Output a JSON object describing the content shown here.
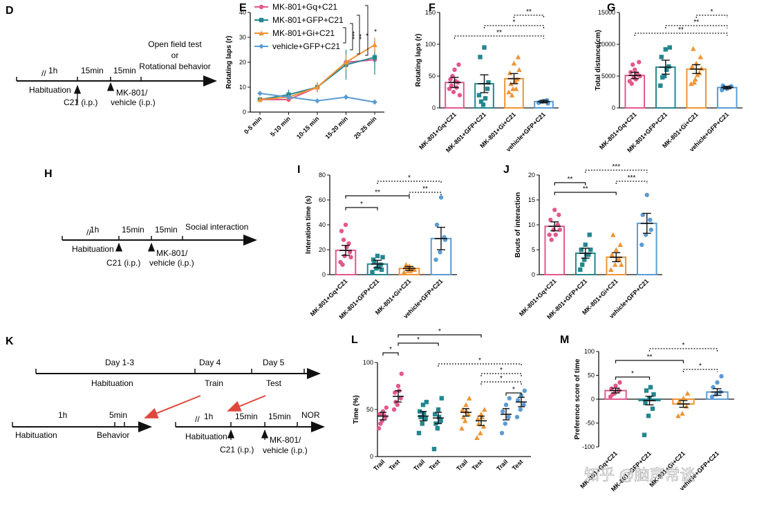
{
  "watermark": "知乎 @脑声常谈",
  "colors": {
    "pink": "#e2588c",
    "teal": "#24868f",
    "orange": "#ef9434",
    "blue": "#5b9bd3",
    "red": "#e0473b",
    "black": "#111111"
  },
  "panels": {
    "D": {
      "label": "D",
      "h1": "1h",
      "m15a": "15min",
      "m15b": "15min",
      "test1": "Open field test",
      "test_or": "or",
      "test2": "Rotational behavior",
      "habituation": "Habituation",
      "c21": "C21 (i.p.)",
      "mk1": "MK-801/",
      "mk2": "vehicle (i.p.)"
    },
    "H": {
      "label": "H",
      "h1": "1h",
      "m15a": "15min",
      "m15b": "15min",
      "test": "Social interaction",
      "habituation": "Habituation",
      "c21": "C21 (i.p.)",
      "mk1": "MK-801/",
      "mk2": "vehicle (i.p.)"
    },
    "K": {
      "label": "K",
      "day13": "Day 1-3",
      "day4": "Day 4",
      "day5": "Day 5",
      "habituation": "Habituation",
      "train": "Train",
      "test": "Test",
      "h1": "1h",
      "min5": "5min",
      "habituation2": "Habituation",
      "behavior": "Behavior",
      "h1b": "1h",
      "m15a": "15min",
      "m15b": "15min",
      "nor": "NOR",
      "habituation3": "Habituation",
      "c21": "C21 (i.p.)",
      "mk1": "MK-801/",
      "mk2": "vehicle (i.p.)"
    }
  },
  "chart_data": [
    {
      "id": "E",
      "label": "E",
      "type": "line",
      "ylabel": "Rotating laps (r)",
      "ylim": [
        0,
        40
      ],
      "yticks": [
        0,
        10,
        20,
        30,
        40
      ],
      "categories": [
        "0-5 min",
        "5-10 min",
        "10-15 min",
        "15-20 min",
        "20-25 min"
      ],
      "legend": [
        "MK-801+Gq+C21",
        "MK-801+GFP+C21",
        "MK-801+Gi+C21",
        "vehicle+GFP+C21"
      ],
      "series": [
        {
          "name": "MK-801+Gq+C21",
          "color": "pink",
          "marker": "circle",
          "values": [
            5,
            5,
            10,
            20,
            21
          ],
          "err": [
            1,
            1,
            2,
            3,
            4
          ]
        },
        {
          "name": "MK-801+GFP+C21",
          "color": "teal",
          "marker": "square",
          "values": [
            5,
            7,
            10,
            19,
            22
          ],
          "err": [
            1,
            2,
            2,
            6,
            7
          ]
        },
        {
          "name": "MK-801+Gi+C21",
          "color": "orange",
          "marker": "triangle",
          "values": [
            5,
            6,
            10,
            20,
            27
          ],
          "err": [
            1,
            1,
            2,
            3,
            3
          ]
        },
        {
          "name": "vehicle+GFP+C21",
          "color": "blue",
          "marker": "diamond",
          "values": [
            7.5,
            6,
            4.5,
            6,
            4
          ],
          "err": [
            1,
            1,
            0.5,
            1,
            1
          ]
        }
      ],
      "sig": [
        "***",
        "**",
        "*",
        "*"
      ]
    },
    {
      "id": "F",
      "label": "F",
      "type": "bar",
      "ylabel": "Rotating laps (r)",
      "ylim": [
        0,
        150
      ],
      "yticks": [
        0,
        50,
        100,
        150
      ],
      "categories": [
        "MK-801+Gq+C21",
        "MK-801+GFP+C21",
        "MK-801+Gi+C21",
        "vehicle+GFP+C21"
      ],
      "colors": [
        "pink",
        "teal",
        "orange",
        "blue"
      ],
      "markers": [
        "circle",
        "square",
        "triangle",
        "circle"
      ],
      "values": [
        40,
        38,
        46,
        10
      ],
      "err": [
        8,
        14,
        8,
        2
      ],
      "points": [
        [
          30,
          25,
          40,
          45,
          60,
          68,
          35,
          42,
          20,
          50,
          32
        ],
        [
          20,
          5,
          30,
          80,
          95,
          40,
          10,
          15
        ],
        [
          25,
          30,
          45,
          55,
          70,
          80,
          38,
          42,
          60,
          20,
          30
        ],
        [
          8,
          10,
          12,
          9,
          11,
          7
        ]
      ],
      "sig": [
        "**",
        "*",
        "**"
      ]
    },
    {
      "id": "G",
      "label": "G",
      "type": "bar",
      "ylabel": "Total distance(cm)",
      "ylim": [
        0,
        15000
      ],
      "yticks": [
        0,
        5000,
        10000,
        15000
      ],
      "categories": [
        "MK-801+Gq+C21",
        "MK-801+GFP+C21",
        "MK-801+Gi+C21",
        "vehicle+GFP+C21"
      ],
      "colors": [
        "pink",
        "teal",
        "orange",
        "blue"
      ],
      "markers": [
        "circle",
        "square",
        "triangle",
        "circle"
      ],
      "values": [
        5100,
        6400,
        6100,
        3200
      ],
      "err": [
        500,
        1100,
        700,
        200
      ],
      "points": [
        [
          4200,
          4800,
          5200,
          5600,
          6000,
          7200,
          3800,
          4500,
          5000,
          6800,
          5400
        ],
        [
          3500,
          5000,
          6500,
          8000,
          9200,
          9500,
          4800,
          6000
        ],
        [
          3800,
          4500,
          5500,
          6500,
          7000,
          8000,
          9300,
          5200,
          6200,
          4000
        ],
        [
          2800,
          3100,
          3300,
          3500,
          3000,
          3400
        ]
      ],
      "sig": [
        "**",
        "**",
        "*"
      ]
    },
    {
      "id": "I",
      "label": "I",
      "type": "bar",
      "ylabel": "Interation time (s)",
      "ylim": [
        0,
        80
      ],
      "yticks": [
        0,
        20,
        40,
        60,
        80
      ],
      "categories": [
        "MK-801+Gq+C21",
        "MK-801+GFP+C21",
        "MK-801+Gi+C21",
        "vehicle+GFP+C21"
      ],
      "colors": [
        "pink",
        "teal",
        "orange",
        "blue"
      ],
      "markers": [
        "circle",
        "square",
        "triangle",
        "circle"
      ],
      "values": [
        19.5,
        8.5,
        5,
        29
      ],
      "err": [
        4,
        3,
        1.5,
        9
      ],
      "points": [
        [
          10,
          15,
          25,
          35,
          40,
          18,
          8,
          22,
          14,
          28
        ],
        [
          2,
          5,
          8,
          12,
          15,
          4,
          10,
          6,
          14
        ],
        [
          2,
          3,
          4,
          6,
          7,
          5,
          8,
          3,
          4,
          6
        ],
        [
          12,
          18,
          30,
          40,
          62,
          28
        ]
      ],
      "sig": [
        "*",
        "**",
        "*",
        "**"
      ]
    },
    {
      "id": "J",
      "label": "J",
      "type": "bar",
      "ylabel": "Bouts of interaction",
      "ylim": [
        0,
        20
      ],
      "yticks": [
        0,
        5,
        10,
        15,
        20
      ],
      "categories": [
        "MK-801+Gq+C21",
        "MK-801+GFP+C21",
        "MK-801+Gi+C21",
        "vehicle+GFP+C21"
      ],
      "colors": [
        "pink",
        "teal",
        "orange",
        "blue"
      ],
      "markers": [
        "circle",
        "square",
        "triangle",
        "circle"
      ],
      "values": [
        9.7,
        4.3,
        3.5,
        10.3
      ],
      "err": [
        0.9,
        1,
        0.9,
        2
      ],
      "points": [
        [
          8,
          9,
          10,
          11,
          13,
          12,
          7,
          8,
          9
        ],
        [
          1,
          3,
          4,
          5,
          6,
          8,
          2,
          4,
          5
        ],
        [
          1,
          2,
          3,
          4,
          5,
          6,
          8,
          3,
          2
        ],
        [
          6,
          8,
          11,
          12,
          16,
          9
        ]
      ],
      "sig": [
        "**",
        "**",
        "***",
        "***"
      ]
    },
    {
      "id": "L",
      "label": "L",
      "type": "scatter",
      "ylabel": "Time (%)",
      "ylim": [
        0,
        100
      ],
      "yticks": [
        0,
        50,
        100
      ],
      "categories": [
        "Trail",
        "Test",
        "Trail",
        "Test",
        "Trail",
        "Test",
        "Trail",
        "Test"
      ],
      "colors": [
        "pink",
        "pink",
        "teal",
        "teal",
        "orange",
        "orange",
        "blue",
        "blue"
      ],
      "markers": [
        "circle",
        "circle",
        "square",
        "square",
        "triangle",
        "triangle",
        "circle",
        "circle"
      ],
      "values": [
        43,
        64,
        43,
        41,
        47,
        38,
        45,
        58
      ],
      "err": [
        4,
        6,
        5,
        6,
        4,
        5,
        6,
        5
      ],
      "points": [
        [
          30,
          38,
          42,
          45,
          48,
          52,
          35,
          44
        ],
        [
          50,
          55,
          62,
          68,
          75,
          88,
          58,
          70
        ],
        [
          25,
          35,
          40,
          48,
          55,
          58,
          42,
          46
        ],
        [
          8,
          30,
          38,
          45,
          50,
          62,
          35,
          42
        ],
        [
          30,
          38,
          45,
          50,
          55,
          62,
          42,
          48
        ],
        [
          20,
          25,
          32,
          40,
          45,
          50,
          35,
          42
        ],
        [
          25,
          35,
          42,
          48,
          55,
          62
        ],
        [
          42,
          50,
          55,
          60,
          65,
          70
        ]
      ],
      "sig": [
        "*",
        "*",
        "*",
        "*",
        "*",
        "*",
        "*"
      ]
    },
    {
      "id": "M",
      "label": "M",
      "type": "bar",
      "ylabel": "Preference score of time",
      "ylim": [
        -100,
        100
      ],
      "yticks": [
        -100,
        -50,
        0,
        50,
        100
      ],
      "categories": [
        "MK-801+Gq+C21",
        "MK-801+GFP+C21",
        "MK-801+Gi+C21",
        "vehicle+GFP+C21"
      ],
      "colors": [
        "pink",
        "teal",
        "orange",
        "blue"
      ],
      "markers": [
        "circle",
        "square",
        "triangle",
        "circle"
      ],
      "values": [
        18,
        -3,
        -10,
        15
      ],
      "err": [
        5,
        9,
        7,
        7
      ],
      "points": [
        [
          5,
          12,
          18,
          22,
          28,
          35,
          10
        ],
        [
          -75,
          -35,
          -20,
          -8,
          2,
          10,
          18,
          25
        ],
        [
          -35,
          -30,
          -15,
          -5,
          2,
          12
        ],
        [
          5,
          10,
          15,
          25,
          35,
          48
        ]
      ],
      "sig": [
        "*",
        "**",
        "*",
        "*"
      ]
    }
  ]
}
